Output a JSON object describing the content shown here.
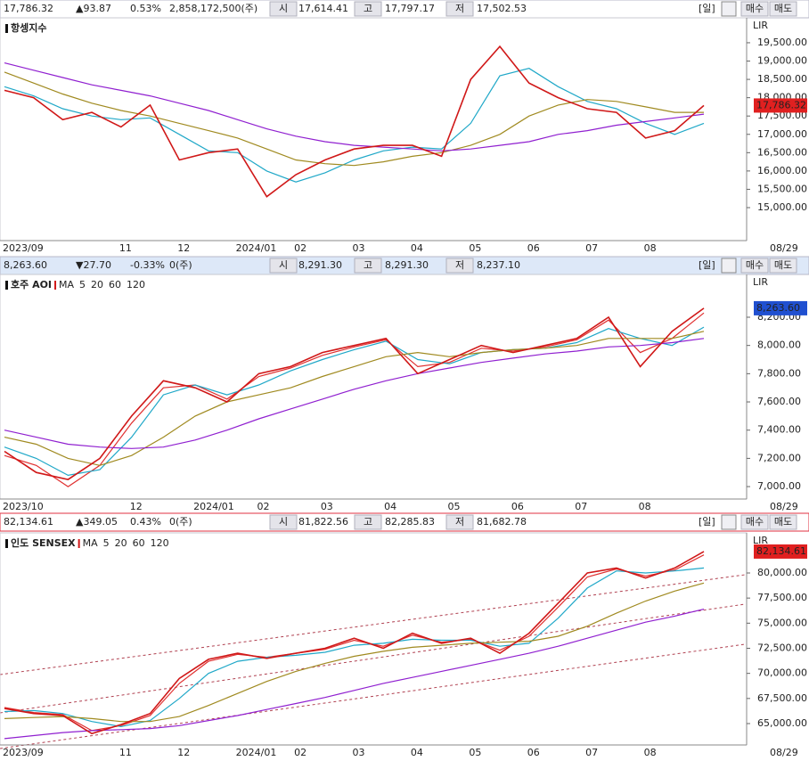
{
  "chart_data": [
    {
      "type": "line",
      "title": "항셍지수",
      "color": "#d01818",
      "box_color": "#e02020",
      "quote": {
        "price": "17,786.32",
        "change": "▲93.87",
        "change_pct": "0.53%",
        "volume": "2,858,172,500(주)",
        "open_label": "시",
        "open": "17,614.41",
        "high_label": "고",
        "high": "17,797.17",
        "low_label": "저",
        "low": "17,502.53",
        "period": "[일]",
        "buy": "매수",
        "sell": "매도"
      },
      "axis_badge": "LIR",
      "end_label": "08/29",
      "categories": [
        "2023/09",
        null,
        null,
        null,
        "11",
        null,
        "12",
        null,
        "2024/01",
        null,
        "02",
        null,
        "03",
        null,
        "04",
        null,
        "05",
        null,
        "06",
        null,
        "07",
        null,
        "08",
        null,
        null
      ],
      "values": [
        18200,
        18000,
        17400,
        17600,
        17200,
        17800,
        16300,
        16500,
        16600,
        15300,
        15900,
        16300,
        16600,
        16700,
        16700,
        16400,
        18500,
        19400,
        18400,
        18000,
        17700,
        17600,
        16900,
        17100,
        17786.32
      ],
      "series": [
        {
          "color": "#20a8c8",
          "values": [
            18300,
            18050,
            17700,
            17500,
            17400,
            17450,
            17000,
            16550,
            16500,
            16000,
            15700,
            15950,
            16300,
            16550,
            16650,
            16600,
            17300,
            18600,
            18800,
            18300,
            17900,
            17700,
            17300,
            17000,
            17300
          ]
        },
        {
          "color": "#a08a20",
          "values": [
            18700,
            18400,
            18100,
            17850,
            17650,
            17500,
            17300,
            17100,
            16900,
            16600,
            16300,
            16200,
            16150,
            16250,
            16400,
            16500,
            16700,
            17000,
            17500,
            17800,
            17950,
            17900,
            17750,
            17600,
            17600
          ]
        },
        {
          "color": "#9020d0",
          "values": [
            18950,
            18750,
            18550,
            18350,
            18200,
            18050,
            17850,
            17650,
            17400,
            17150,
            16950,
            16800,
            16700,
            16650,
            16600,
            16550,
            16600,
            16700,
            16800,
            17000,
            17100,
            17250,
            17350,
            17450,
            17550
          ]
        }
      ],
      "ylim": [
        14100,
        20180
      ],
      "yticks": [
        {
          "value": 15000,
          "label": "15,000.00"
        },
        {
          "value": 15500,
          "label": "15,500.00"
        },
        {
          "value": 16000,
          "label": "16,000.00"
        },
        {
          "value": 16500,
          "label": "16,500.00"
        },
        {
          "value": 17000,
          "label": "17,000.00"
        },
        {
          "value": 17500,
          "label": "17,500.00"
        },
        {
          "value": 18000,
          "label": "18,000.00"
        },
        {
          "value": 18500,
          "label": "18,500.00"
        },
        {
          "value": 19000,
          "label": "19,000.00"
        },
        {
          "value": 19500,
          "label": "19,500.00"
        }
      ]
    },
    {
      "type": "line",
      "title": "호주 AOI",
      "color": "#d01818",
      "box_color": "#2050d0",
      "quote": {
        "price": "8,263.60",
        "change": "▼27.70",
        "change_pct": "-0.33%",
        "volume": "0(주)",
        "open_label": "시",
        "open": "8,291.30",
        "high_label": "고",
        "high": "8,291.30",
        "low_label": "저",
        "low": "8,237.10",
        "period": "[일]",
        "buy": "매수",
        "sell": "매도"
      },
      "axis_badge": "LIR",
      "end_label": "08/29",
      "legend_title": "MA",
      "categories": [
        "2023/10",
        null,
        null,
        null,
        "12",
        null,
        "2024/01",
        null,
        "02",
        null,
        "03",
        null,
        "04",
        null,
        "05",
        null,
        "06",
        null,
        "07",
        null,
        "08",
        null,
        null
      ],
      "values": [
        7250,
        7100,
        7050,
        7200,
        7500,
        7750,
        7700,
        7600,
        7800,
        7850,
        7950,
        8000,
        8050,
        7800,
        7900,
        8000,
        7950,
        8000,
        8050,
        8200,
        7850,
        8100,
        8263.6
      ],
      "series": [
        {
          "name": "5",
          "color": "#e03030",
          "values": [
            7220,
            7150,
            7000,
            7150,
            7450,
            7700,
            7720,
            7620,
            7780,
            7840,
            7930,
            7990,
            8040,
            7850,
            7880,
            7980,
            7960,
            7990,
            8040,
            8180,
            7950,
            8050,
            8230
          ]
        },
        {
          "name": "20",
          "color": "#20a8c8",
          "values": [
            7280,
            7200,
            7080,
            7120,
            7350,
            7650,
            7720,
            7650,
            7720,
            7820,
            7900,
            7970,
            8030,
            7900,
            7870,
            7950,
            7970,
            7980,
            8020,
            8120,
            8050,
            8000,
            8130
          ]
        },
        {
          "name": "60",
          "color": "#a08a20",
          "values": [
            7350,
            7300,
            7200,
            7150,
            7220,
            7350,
            7500,
            7600,
            7650,
            7700,
            7780,
            7850,
            7920,
            7950,
            7920,
            7950,
            7970,
            7980,
            8000,
            8050,
            8050,
            8050,
            8100
          ]
        },
        {
          "name": "120",
          "color": "#9020d0",
          "values": [
            7400,
            7350,
            7300,
            7280,
            7270,
            7280,
            7330,
            7400,
            7480,
            7550,
            7620,
            7690,
            7750,
            7800,
            7840,
            7880,
            7910,
            7940,
            7960,
            7990,
            8000,
            8020,
            8050
          ]
        }
      ],
      "ylim": [
        6912,
        8503
      ],
      "yticks": [
        {
          "value": 7000,
          "label": "7,000.00"
        },
        {
          "value": 7200,
          "label": "7,200.00"
        },
        {
          "value": 7400,
          "label": "7,400.00"
        },
        {
          "value": 7600,
          "label": "7,600.00"
        },
        {
          "value": 7800,
          "label": "7,800.00"
        },
        {
          "value": 8000,
          "label": "8,000.00"
        },
        {
          "value": 8200,
          "label": "8,200.00"
        }
      ]
    },
    {
      "type": "line",
      "title": "인도 SENSEX",
      "color": "#d01818",
      "box_color": "#e02020",
      "quote": {
        "price": "82,134.61",
        "change": "▲349.05",
        "change_pct": "0.43%",
        "volume": "0(주)",
        "open_label": "시",
        "open": "81,822.56",
        "high_label": "고",
        "high": "82,285.83",
        "low_label": "저",
        "low": "81,682.78",
        "period": "[일]",
        "buy": "매수",
        "sell": "매도"
      },
      "axis_badge": "LIR",
      "end_label": "08/29",
      "legend_title": "MA",
      "categories": [
        "2023/09",
        null,
        null,
        null,
        "11",
        null,
        "12",
        null,
        "2024/01",
        null,
        "02",
        null,
        "03",
        null,
        "04",
        null,
        "05",
        null,
        "06",
        null,
        "07",
        null,
        "08",
        null,
        null
      ],
      "values": [
        66500,
        66000,
        65800,
        64000,
        64900,
        66000,
        69500,
        71400,
        72000,
        71500,
        72000,
        72500,
        73500,
        72500,
        74000,
        73000,
        73500,
        72000,
        74000,
        77000,
        80000,
        80500,
        79500,
        80500,
        82134.61
      ],
      "series": [
        {
          "name": "5",
          "color": "#e03030",
          "values": [
            66600,
            66100,
            65900,
            64300,
            64800,
            65800,
            69000,
            71200,
            71900,
            71600,
            72000,
            72400,
            73300,
            72700,
            73800,
            73100,
            73400,
            72300,
            73700,
            76600,
            79600,
            80400,
            79700,
            80300,
            81800
          ]
        },
        {
          "name": "20",
          "color": "#20a8c8",
          "values": [
            66200,
            66300,
            66000,
            65200,
            64700,
            65300,
            67500,
            70000,
            71200,
            71600,
            71800,
            72100,
            72800,
            73000,
            73400,
            73300,
            73300,
            72700,
            73000,
            75500,
            78500,
            80200,
            80000,
            80200,
            80500
          ]
        },
        {
          "name": "60",
          "color": "#a08a20",
          "values": [
            65500,
            65600,
            65700,
            65500,
            65200,
            65200,
            65700,
            66800,
            68000,
            69200,
            70200,
            71000,
            71700,
            72200,
            72600,
            72800,
            73000,
            73100,
            73200,
            73700,
            74700,
            76000,
            77200,
            78200,
            79000
          ]
        },
        {
          "name": "120",
          "color": "#9020d0",
          "values": [
            63500,
            63800,
            64100,
            64300,
            64400,
            64500,
            64800,
            65300,
            65800,
            66400,
            67000,
            67600,
            68300,
            69000,
            69600,
            70200,
            70800,
            71400,
            72000,
            72700,
            73500,
            74300,
            75100,
            75700,
            76400
          ]
        }
      ],
      "ylim": [
        62870,
        83993
      ],
      "yticks": [
        {
          "value": 65000,
          "label": "65,000.00"
        },
        {
          "value": 67500,
          "label": "67,500.00"
        },
        {
          "value": 70000,
          "label": "70,000.00"
        },
        {
          "value": 72500,
          "label": "72,500.00"
        },
        {
          "value": 75000,
          "label": "75,000.00"
        },
        {
          "value": 77500,
          "label": "77,500.00"
        },
        {
          "value": 80000,
          "label": "80,000.00"
        }
      ]
    }
  ]
}
